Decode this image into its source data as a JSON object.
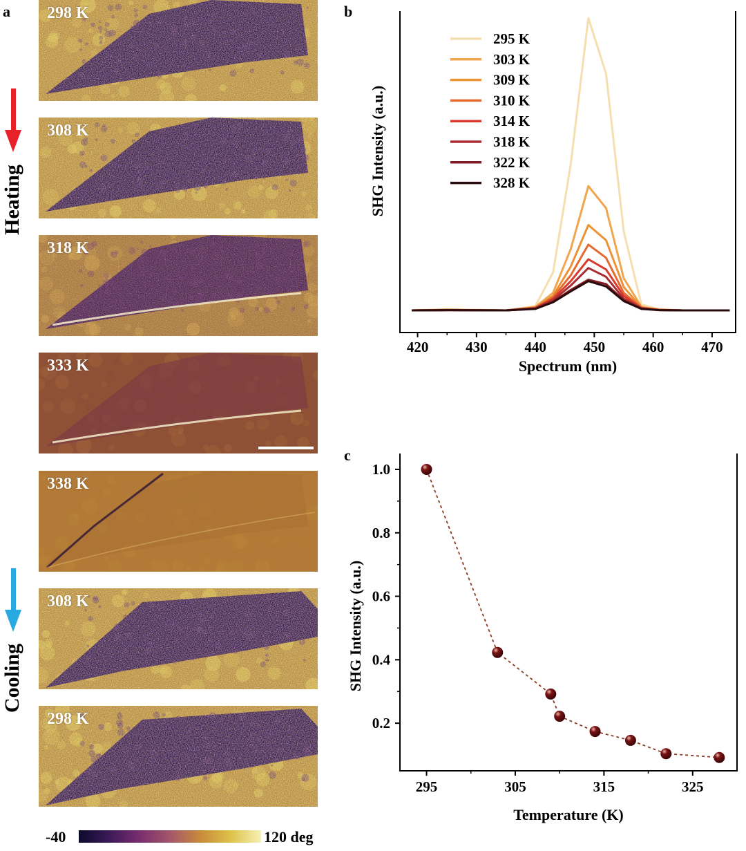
{
  "panel_labels": {
    "a": "a",
    "b": "b",
    "c": "c"
  },
  "panel_a": {
    "images": [
      {
        "label": "298 K",
        "style": "domain"
      },
      {
        "label": "308 K",
        "style": "domain"
      },
      {
        "label": "318 K",
        "style": "fading"
      },
      {
        "label": "333 K",
        "style": "faint"
      },
      {
        "label": "338 K",
        "style": "flat"
      },
      {
        "label": "308 K",
        "style": "domain"
      },
      {
        "label": "298 K",
        "style": "domain"
      }
    ],
    "heating_label": "Heating",
    "cooling_label": "Cooling",
    "heating_color": "#e8202a",
    "cooling_color": "#29a9e1",
    "colorbar": {
      "min_label": "-40",
      "max_label": "120 deg",
      "stops": [
        "#0d0a2c",
        "#3b1a5a",
        "#7a2d6e",
        "#a3566a",
        "#c98a3c",
        "#ddc24a",
        "#f6f1b4"
      ]
    }
  },
  "chart_data": [
    {
      "type": "line",
      "panel": "b",
      "xlabel": "Spectrum (nm)",
      "ylabel": "SHG Intensity (a.u.)",
      "xlim": [
        417,
        474
      ],
      "ylim": [
        0,
        1.1
      ],
      "xticks": [
        420,
        430,
        440,
        450,
        460,
        470
      ],
      "x": [
        419,
        425,
        435,
        440,
        443,
        446,
        449,
        452,
        455,
        458,
        461,
        465,
        473
      ],
      "series": [
        {
          "name": "295 K",
          "color": "#f5dfb0",
          "values": [
            0,
            0.004,
            0,
            0.015,
            0.13,
            0.5,
            1.0,
            0.81,
            0.27,
            0.02,
            0.004,
            0,
            0
          ]
        },
        {
          "name": "303 K",
          "color": "#f0a54e",
          "values": [
            0,
            0.002,
            0,
            0.012,
            0.06,
            0.21,
            0.425,
            0.35,
            0.11,
            0.012,
            0.003,
            0,
            0
          ]
        },
        {
          "name": "309 K",
          "color": "#ec9235",
          "values": [
            0,
            0.002,
            0,
            0.01,
            0.05,
            0.15,
            0.292,
            0.24,
            0.08,
            0.01,
            0.002,
            0,
            0
          ]
        },
        {
          "name": "310 K",
          "color": "#e56a30",
          "values": [
            0,
            0.002,
            0,
            0.009,
            0.045,
            0.12,
            0.225,
            0.18,
            0.06,
            0.009,
            0.002,
            0,
            0
          ]
        },
        {
          "name": "314 K",
          "color": "#d93a2c",
          "values": [
            0,
            0.001,
            0,
            0.008,
            0.04,
            0.1,
            0.175,
            0.14,
            0.05,
            0.008,
            0.002,
            0,
            0
          ]
        },
        {
          "name": "318 K",
          "color": "#a82c33",
          "values": [
            0,
            0.001,
            0,
            0.007,
            0.035,
            0.085,
            0.145,
            0.115,
            0.04,
            0.007,
            0.001,
            0,
            0
          ]
        },
        {
          "name": "322 K",
          "color": "#7e1a22",
          "values": [
            0,
            0.001,
            0,
            0.006,
            0.03,
            0.07,
            0.105,
            0.09,
            0.035,
            0.006,
            0.001,
            0,
            0
          ]
        },
        {
          "name": "328 K",
          "color": "#2a0c0e",
          "values": [
            0,
            0.001,
            0,
            0.005,
            0.028,
            0.065,
            0.1,
            0.082,
            0.032,
            0.005,
            0.001,
            0,
            0
          ]
        }
      ]
    },
    {
      "type": "scatter",
      "panel": "c",
      "xlabel": "Temperature (K)",
      "ylabel": "SHG Intensity (a.u.)",
      "xlim": [
        292,
        330
      ],
      "ylim": [
        0.05,
        1.05
      ],
      "xticks": [
        295,
        305,
        315,
        325
      ],
      "yticks": [
        0.2,
        0.4,
        0.6,
        0.8,
        1.0
      ],
      "ytick_labels": [
        "0.2",
        "0.4",
        "0.6",
        "0.8",
        "1.0"
      ],
      "x": [
        295,
        303,
        309,
        310,
        314,
        318,
        322,
        328
      ],
      "values": [
        1.0,
        0.423,
        0.292,
        0.222,
        0.174,
        0.146,
        0.104,
        0.092
      ],
      "marker_color": "#7a1416",
      "line_style": "dashed"
    }
  ]
}
